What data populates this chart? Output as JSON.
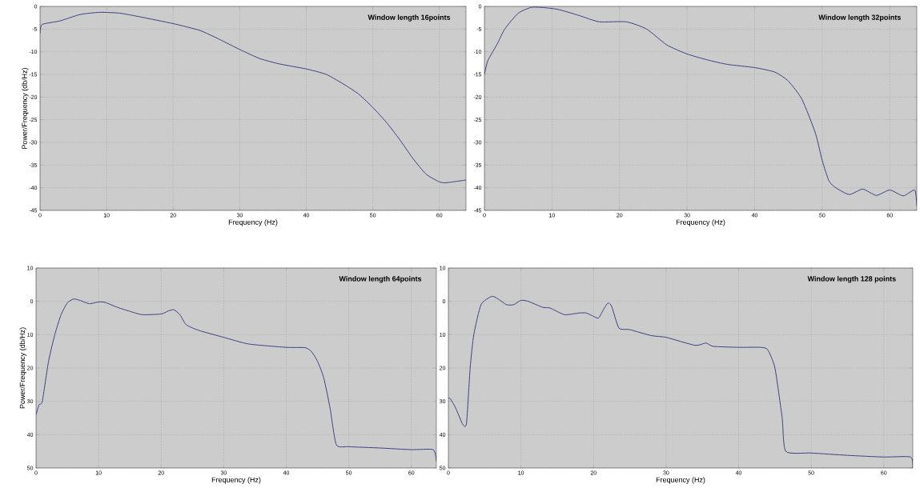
{
  "chart_data": [
    {
      "type": "line",
      "title": "Window length 16points",
      "xlabel": "Frequency (Hz)",
      "ylabel": "Power/Frequency (db/Hz)",
      "xlim": [
        0,
        64
      ],
      "ylim": [
        -45,
        0
      ],
      "xticks": [
        0,
        10,
        20,
        30,
        40,
        50,
        60
      ],
      "yticks": [
        -45,
        -40,
        -35,
        -30,
        -25,
        -20,
        -15,
        -10,
        -5,
        0
      ],
      "grid": true,
      "series": [
        {
          "color": "#2e3279",
          "x": [
            0,
            0.3,
            3,
            6,
            9,
            12,
            15,
            20,
            24,
            27,
            30,
            33,
            36,
            40,
            43,
            46,
            48,
            50,
            52,
            54,
            56,
            58,
            60,
            61,
            64
          ],
          "values": [
            -6,
            -4,
            -3.2,
            -1.8,
            -1.3,
            -1.5,
            -2.3,
            -3.8,
            -5.3,
            -7.3,
            -9.5,
            -11.5,
            -12.7,
            -13.8,
            -15,
            -17.5,
            -19.5,
            -22.3,
            -25.5,
            -29.3,
            -33.5,
            -37,
            -38.7,
            -38.9,
            -38.3
          ]
        }
      ]
    },
    {
      "type": "line",
      "title": "Window length 32points",
      "xlabel": "Frequency (Hz)",
      "xlim": [
        0,
        64
      ],
      "ylim": [
        -45,
        0
      ],
      "xticks": [
        0,
        10,
        20,
        30,
        40,
        50,
        60
      ],
      "yticks": [
        -45,
        -40,
        -35,
        -30,
        -25,
        -20,
        -15,
        -10,
        -5,
        0
      ],
      "grid": true,
      "series": [
        {
          "color": "#2e3279",
          "x": [
            0,
            0.5,
            2,
            3,
            5,
            7,
            9,
            11,
            14,
            17,
            21,
            24,
            27,
            30,
            33,
            36,
            40,
            43,
            45,
            47,
            49,
            50,
            51,
            52,
            54,
            56,
            58,
            60,
            62,
            63.7,
            64
          ],
          "values": [
            -15,
            -12,
            -8,
            -5,
            -1.5,
            -0.2,
            -0.3,
            -0.7,
            -2,
            -3.4,
            -3.4,
            -5,
            -8.5,
            -10.5,
            -11.8,
            -12.8,
            -13.5,
            -14.5,
            -16.5,
            -20.5,
            -28,
            -34,
            -38.5,
            -40,
            -41.5,
            -40.3,
            -41.7,
            -40.5,
            -41.8,
            -40.5,
            -44
          ]
        }
      ]
    },
    {
      "type": "line",
      "title": "Window length 64points",
      "xlabel": "Frequency (Hz)",
      "ylabel": "Power/Frequency (db/Hz)",
      "xlim": [
        0,
        64
      ],
      "ylim": [
        -50,
        10
      ],
      "xticks": [
        0,
        10,
        20,
        30,
        40,
        50,
        60
      ],
      "yticks": [
        {
          "value": -50,
          "label": "50"
        },
        {
          "value": -40,
          "label": "40"
        },
        {
          "value": -30,
          "label": "30"
        },
        {
          "value": -20,
          "label": "20"
        },
        {
          "value": -10,
          "label": "10"
        },
        0,
        10
      ],
      "grid": true,
      "series": [
        {
          "color": "#2e3279",
          "x": [
            0,
            0.5,
            1,
            2,
            3,
            4,
            5,
            6,
            7,
            8.5,
            10,
            11,
            13,
            15,
            17,
            20,
            21,
            22,
            23,
            24,
            26,
            30,
            34,
            40,
            43,
            44,
            45,
            46,
            47,
            48,
            50,
            55,
            60,
            63.5,
            64
          ],
          "values": [
            -34,
            -31,
            -30,
            -18,
            -10,
            -4,
            -0.5,
            0.7,
            0.3,
            -0.7,
            -0.2,
            -0.3,
            -1.8,
            -3,
            -4,
            -3.8,
            -3,
            -2.5,
            -4,
            -7,
            -8.7,
            -10.8,
            -12.8,
            -13.8,
            -13.9,
            -15,
            -18,
            -23,
            -32,
            -43,
            -43.6,
            -44,
            -44.5,
            -44.5,
            -48
          ]
        }
      ]
    },
    {
      "type": "line",
      "title": "Window length 128 points",
      "xlabel": "Frequency (Hz)",
      "xlim": [
        0,
        64
      ],
      "ylim": [
        -50,
        10
      ],
      "xticks": [
        0,
        10,
        20,
        30,
        40,
        50,
        60
      ],
      "yticks": [
        {
          "value": -50,
          "label": "50"
        },
        {
          "value": -40,
          "label": "40"
        },
        {
          "value": -30,
          "label": "30"
        },
        {
          "value": -20,
          "label": "20"
        },
        {
          "value": -10,
          "label": "10"
        },
        0,
        10
      ],
      "grid": true,
      "series": [
        {
          "color": "#2e3279",
          "x": [
            0,
            0.3,
            1,
            2,
            2.5,
            3,
            3.5,
            4.5,
            6,
            7,
            8,
            9,
            10,
            11,
            13,
            14,
            16,
            18,
            19,
            20,
            20.7,
            21.5,
            22,
            22.5,
            23.5,
            25,
            28,
            30,
            34,
            35.5,
            36.5,
            40,
            43,
            44,
            45,
            46,
            46.5,
            50,
            55,
            60,
            63.7,
            64
          ],
          "values": [
            -29,
            -29.3,
            -32,
            -37,
            -36.5,
            -20,
            -10,
            -1,
            1.5,
            0.5,
            -1,
            -1,
            0.3,
            0,
            -1.8,
            -2,
            -4,
            -3.5,
            -3.5,
            -4.5,
            -5,
            -2,
            -0.5,
            -1.5,
            -8,
            -8.5,
            -10.3,
            -10.8,
            -13.2,
            -12.5,
            -13.5,
            -13.8,
            -13.8,
            -14.5,
            -20,
            -35,
            -45,
            -45.5,
            -46.2,
            -46.7,
            -46.7,
            -50
          ]
        }
      ]
    }
  ]
}
